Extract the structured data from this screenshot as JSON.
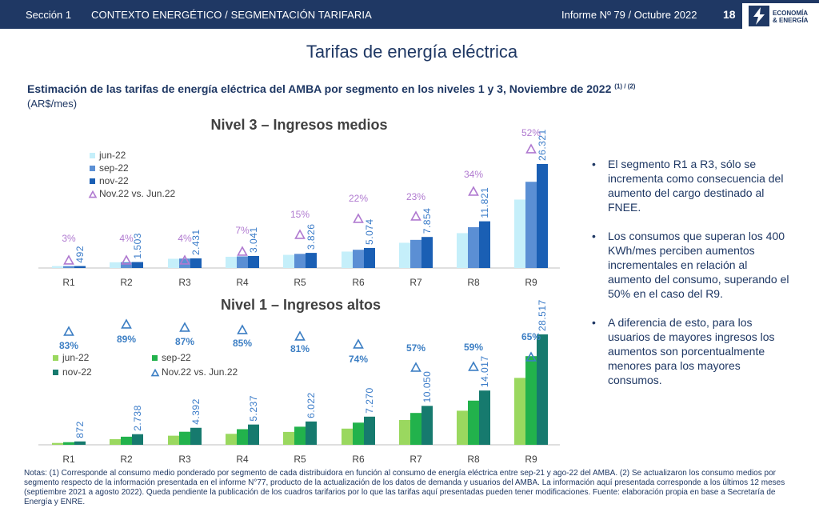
{
  "header": {
    "section": "Sección 1",
    "context": "CONTEXTO ENERGÉTICO / SEGMENTACIÓN TARIFARIA",
    "report": "Informe Nº 79 / Octubre 2022",
    "page_number": "18",
    "logo_line1": "ECONOMÍA",
    "logo_line2": "& ENERGÍA"
  },
  "page_title": "Tarifas de energía eléctrica",
  "subtitle": "Estimación de las tarifas de energía eléctrica del AMBA por segmento en los niveles 1 y 3, Noviembre de 2022",
  "subtitle_sup": "(1) / (2)",
  "unit": "(AR$/mes)",
  "bullets": [
    "El segmento R1 a R3, sólo se incrementa como consecuencia del aumento del cargo destinado al FNEE.",
    "Los consumos que superan los 400 KWh/mes perciben aumentos incrementales en relación al aumento del consumo, superando el 50% en el caso del R9.",
    "A diferencia de esto, para los usuarios de mayores ingresos los aumentos son porcentualmente menores para los mayores consumos."
  ],
  "notes": "Notas: (1) Corresponde al consumo medio ponderado por segmento de cada distribuidora en función al consumo de energía eléctrica entre sep-21 y ago-22 del AMBA. (2) Se actualizaron los consumo medios por segmento respecto de la información presentada en el informe N°77, producto de la actualización de los datos de demanda y usuarios del AMBA. La información aquí presentada corresponde a los últimos 12 meses (septiembre 2021 a agosto 2022). Queda pendiente la publicación de los cuadros tarifarios por lo que las tarifas aquí presentadas pueden tener modificaciones. Fuente: elaboración propia en base a Secretaría de Energía y ENRE.",
  "colors": {
    "header_bg": "#1f3864",
    "n3_jun": "#c5effa",
    "n3_sep": "#5b8fd4",
    "n3_nov": "#1a5fb4",
    "n3_marker": "#b07ad0",
    "n3_label": "#3a7bc8",
    "n1_jun": "#9ad85f",
    "n1_sep": "#22b24c",
    "n1_nov": "#167a6e",
    "n1_marker": "#3d7fc4",
    "n1_label": "#3a7bc8"
  },
  "chart_data": [
    {
      "type": "bar",
      "title": "Nivel 3 – Ingresos medios",
      "categories": [
        "R1",
        "R2",
        "R3",
        "R4",
        "R5",
        "R6",
        "R7",
        "R8",
        "R9"
      ],
      "series": [
        {
          "name": "jun-22",
          "values": [
            478,
            1445,
            2338,
            2842,
            3327,
            4159,
            6386,
            8822,
            17316
          ]
        },
        {
          "name": "sep-22",
          "values": [
            485,
            1474,
            2384,
            2942,
            3577,
            4617,
            7120,
            10322,
            21818
          ]
        },
        {
          "name": "nov-22",
          "values": [
            492,
            1503,
            2431,
            3041,
            3826,
            5074,
            7854,
            11821,
            26321
          ]
        }
      ],
      "data_labels": [
        "492",
        "1.503",
        "2.431",
        "3.041",
        "3.826",
        "5.074",
        "7.854",
        "11.821",
        "26.321"
      ],
      "pct_series": {
        "name": "Nov.22  vs. Jun.22",
        "labels": [
          "3%",
          "4%",
          "4%",
          "7%",
          "15%",
          "22%",
          "23%",
          "34%",
          "52%"
        ]
      },
      "legend_position": "top-left",
      "grid": false
    },
    {
      "type": "bar",
      "title": "Nivel 1 – Ingresos altos",
      "categories": [
        "R1",
        "R2",
        "R3",
        "R4",
        "R5",
        "R6",
        "R7",
        "R8",
        "R9"
      ],
      "series": [
        {
          "name": "jun-22",
          "values": [
            477,
            1449,
            2350,
            2831,
            3327,
            4178,
            6401,
            8804,
            17283
          ]
        },
        {
          "name": "sep-22",
          "values": [
            674,
            2093,
            3371,
            4034,
            4674,
            5724,
            8225,
            11411,
            22900
          ]
        },
        {
          "name": "nov-22",
          "values": [
            872,
            2738,
            4392,
            5237,
            6022,
            7270,
            10050,
            14017,
            28517
          ]
        }
      ],
      "data_labels": [
        "872",
        "2.738",
        "4.392",
        "5.237",
        "6.022",
        "7.270",
        "10.050",
        "14.017",
        "28.517"
      ],
      "pct_series": {
        "name": "Nov.22  vs. Jun.22",
        "labels": [
          "83%",
          "89%",
          "87%",
          "85%",
          "81%",
          "74%",
          "57%",
          "59%",
          "65%"
        ]
      },
      "legend_position": "top-left",
      "grid": false
    }
  ]
}
